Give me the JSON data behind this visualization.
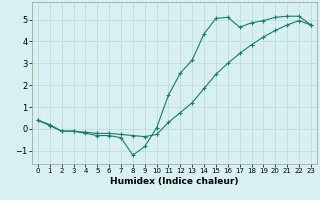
{
  "xlabel": "Humidex (Indice chaleur)",
  "bg_color": "#d8f0f0",
  "line_color": "#1a7a6e",
  "xlim": [
    -0.5,
    23.5
  ],
  "ylim": [
    -1.6,
    5.8
  ],
  "xticks": [
    0,
    1,
    2,
    3,
    4,
    5,
    6,
    7,
    8,
    9,
    10,
    11,
    12,
    13,
    14,
    15,
    16,
    17,
    18,
    19,
    20,
    21,
    22,
    23
  ],
  "yticks": [
    -1,
    0,
    1,
    2,
    3,
    4,
    5
  ],
  "line1_x": [
    0,
    1,
    2,
    3,
    4,
    5,
    6,
    7,
    8,
    9,
    10,
    11,
    12,
    13,
    14,
    15,
    16,
    17,
    18,
    19,
    20,
    21,
    22,
    23
  ],
  "line1_y": [
    0.4,
    0.2,
    -0.1,
    -0.1,
    -0.2,
    -0.3,
    -0.3,
    -0.4,
    -1.2,
    -0.8,
    0.05,
    1.55,
    2.55,
    3.15,
    4.35,
    5.05,
    5.1,
    4.65,
    4.85,
    4.95,
    5.1,
    5.15,
    5.15,
    4.75
  ],
  "line2_x": [
    0,
    1,
    2,
    3,
    4,
    5,
    6,
    7,
    8,
    9,
    10,
    11,
    12,
    13,
    14,
    15,
    16,
    17,
    18,
    19,
    20,
    21,
    22,
    23
  ],
  "line2_y": [
    0.4,
    0.15,
    -0.1,
    -0.1,
    -0.15,
    -0.2,
    -0.2,
    -0.25,
    -0.3,
    -0.35,
    -0.25,
    0.3,
    0.75,
    1.2,
    1.85,
    2.5,
    3.0,
    3.45,
    3.85,
    4.2,
    4.5,
    4.75,
    4.95,
    4.75
  ],
  "grid_color": "#b8dada",
  "marker": "+"
}
